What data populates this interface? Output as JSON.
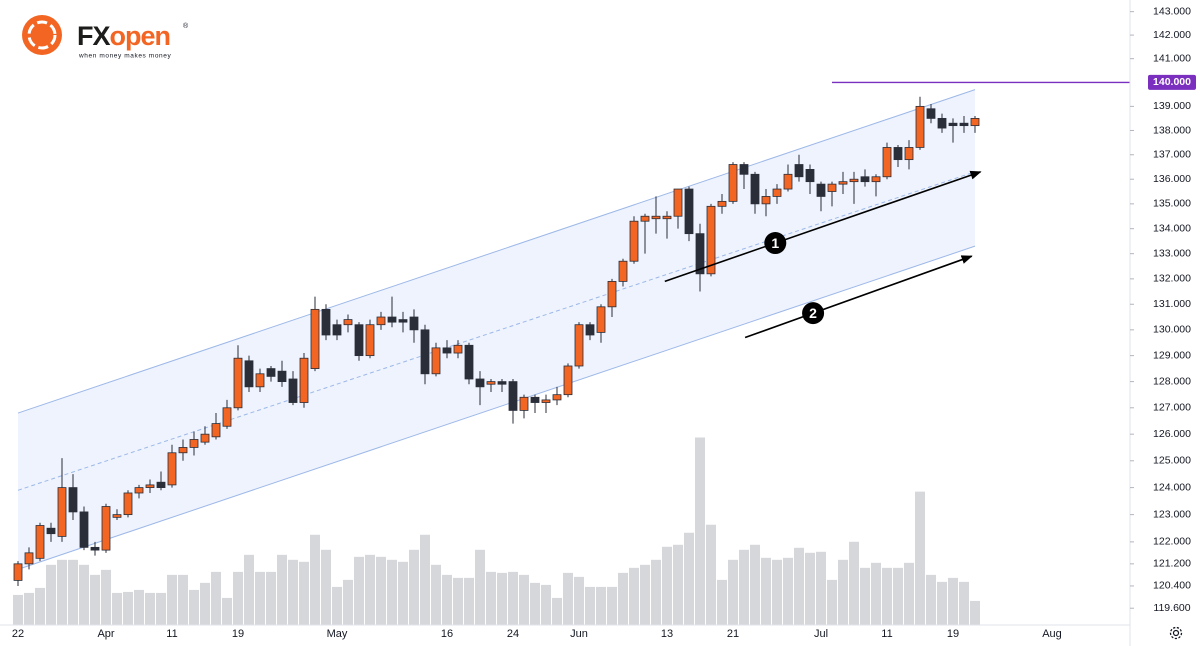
{
  "logo": {
    "brand": [
      "FX",
      "open"
    ],
    "registered": "®",
    "tagline": "when money makes money"
  },
  "chart_data": {
    "type": "candlestick",
    "categories": [
      "22",
      null,
      null,
      null,
      null,
      null,
      null,
      null,
      "Apr",
      null,
      null,
      null,
      null,
      null,
      "11",
      null,
      null,
      null,
      null,
      null,
      "19",
      null,
      null,
      null,
      null,
      null,
      null,
      null,
      null,
      "May",
      null,
      null,
      null,
      null,
      null,
      null,
      null,
      null,
      null,
      "16",
      null,
      null,
      null,
      null,
      null,
      "24",
      null,
      null,
      null,
      null,
      null,
      "Jun",
      null,
      null,
      null,
      null,
      null,
      null,
      null,
      "13",
      null,
      null,
      null,
      null,
      null,
      "21",
      null,
      null,
      null,
      null,
      null,
      null,
      null,
      "Jul",
      null,
      null,
      null,
      null,
      null,
      "11",
      null,
      null,
      null,
      null,
      null,
      "19",
      null,
      null,
      null,
      null,
      null,
      null,
      null,
      null,
      "Aug"
    ],
    "open": [
      120.6,
      121.2,
      121.4,
      122.5,
      122.2,
      124.0,
      123.1,
      121.8,
      121.7,
      122.9,
      123.0,
      123.8,
      124.0,
      124.2,
      124.1,
      125.3,
      125.5,
      125.7,
      125.9,
      126.3,
      127.0,
      128.8,
      127.8,
      128.5,
      128.4,
      128.1,
      127.2,
      128.5,
      130.8,
      130.2,
      130.2,
      130.2,
      129.0,
      130.2,
      130.5,
      130.4,
      130.5,
      130.0,
      128.3,
      129.3,
      129.1,
      129.4,
      128.1,
      127.9,
      128.0,
      128.0,
      126.9,
      127.4,
      127.2,
      127.3,
      127.5,
      128.6,
      130.2,
      129.9,
      130.9,
      131.9,
      132.7,
      134.3,
      134.4,
      134.4,
      134.5,
      135.6,
      133.8,
      132.2,
      134.9,
      135.1,
      136.6,
      136.2,
      135.0,
      135.3,
      135.6,
      136.6,
      136.4,
      135.8,
      135.5,
      135.8,
      135.9,
      136.1,
      135.9,
      136.1,
      137.3,
      136.8,
      137.3,
      138.9,
      138.5,
      138.3,
      138.3,
      138.2,
      null,
      null,
      null,
      null,
      null,
      null,
      null
    ],
    "high": [
      121.3,
      121.8,
      122.7,
      122.7,
      125.1,
      124.5,
      123.3,
      122.0,
      123.4,
      123.2,
      123.9,
      124.1,
      124.3,
      124.6,
      125.6,
      125.8,
      126.1,
      126.3,
      126.8,
      127.3,
      129.4,
      129.0,
      128.5,
      128.6,
      128.8,
      128.4,
      129.1,
      131.3,
      131.0,
      130.4,
      130.6,
      130.3,
      130.4,
      130.7,
      131.3,
      130.7,
      130.8,
      130.2,
      129.5,
      129.6,
      129.6,
      129.5,
      128.4,
      128.1,
      128.1,
      128.1,
      127.5,
      127.5,
      127.5,
      127.8,
      128.7,
      130.3,
      130.3,
      131.0,
      132.0,
      132.8,
      134.5,
      134.6,
      135.3,
      134.7,
      135.6,
      135.7,
      134.2,
      135.0,
      135.4,
      136.7,
      136.7,
      136.3,
      135.6,
      135.8,
      136.6,
      137.0,
      136.6,
      135.9,
      135.9,
      136.3,
      136.3,
      136.4,
      136.2,
      137.5,
      137.4,
      137.6,
      139.4,
      139.1,
      138.7,
      138.5,
      138.6,
      138.6,
      null,
      null,
      null,
      null,
      null,
      null,
      null
    ],
    "low": [
      120.4,
      121.0,
      121.3,
      122.0,
      122.0,
      122.8,
      121.7,
      121.5,
      121.6,
      122.8,
      122.9,
      123.6,
      123.8,
      123.9,
      124.0,
      125.0,
      125.2,
      125.6,
      125.8,
      126.2,
      126.9,
      127.6,
      127.6,
      128.0,
      127.8,
      127.1,
      127.0,
      128.4,
      129.6,
      129.6,
      129.9,
      128.8,
      128.9,
      130.0,
      130.1,
      129.9,
      129.5,
      127.9,
      128.2,
      128.9,
      128.9,
      127.9,
      127.1,
      127.6,
      127.6,
      126.4,
      126.6,
      126.8,
      126.8,
      127.1,
      127.4,
      128.5,
      129.6,
      129.5,
      130.5,
      131.7,
      132.6,
      133.0,
      133.8,
      133.6,
      134.0,
      133.5,
      131.5,
      132.1,
      134.6,
      135.0,
      135.6,
      134.6,
      134.5,
      135.0,
      135.5,
      135.9,
      135.4,
      134.7,
      134.9,
      135.4,
      135.0,
      135.7,
      135.3,
      136.0,
      136.5,
      136.4,
      137.2,
      138.3,
      137.9,
      137.5,
      137.9,
      137.9,
      null,
      null,
      null,
      null,
      null,
      null,
      null
    ],
    "close": [
      121.2,
      121.6,
      122.6,
      122.3,
      124.0,
      123.1,
      121.8,
      121.7,
      123.3,
      123.0,
      123.8,
      124.0,
      124.1,
      124.0,
      125.3,
      125.5,
      125.8,
      126.0,
      126.4,
      127.0,
      128.9,
      127.8,
      128.3,
      128.2,
      128.0,
      127.2,
      128.9,
      130.8,
      129.8,
      129.8,
      130.4,
      129.0,
      130.2,
      130.5,
      130.3,
      130.3,
      130.0,
      128.3,
      129.3,
      129.1,
      129.4,
      128.1,
      127.8,
      128.0,
      127.9,
      126.9,
      127.4,
      127.2,
      127.3,
      127.5,
      128.6,
      130.2,
      129.8,
      130.9,
      131.9,
      132.7,
      134.3,
      134.5,
      134.5,
      134.5,
      135.6,
      133.8,
      132.2,
      134.9,
      135.1,
      136.6,
      136.2,
      135.0,
      135.3,
      135.6,
      136.2,
      136.1,
      135.9,
      135.3,
      135.8,
      135.9,
      136.0,
      135.9,
      136.1,
      137.3,
      136.8,
      137.3,
      139.0,
      138.5,
      138.1,
      138.2,
      138.2,
      138.5,
      null,
      null,
      null,
      null,
      null,
      null,
      null
    ],
    "volume": [
      30,
      32,
      37,
      60,
      65,
      65,
      60,
      50,
      55,
      32,
      33,
      35,
      32,
      32,
      50,
      50,
      35,
      42,
      53,
      27,
      53,
      70,
      53,
      53,
      70,
      65,
      63,
      90,
      75,
      38,
      45,
      68,
      70,
      68,
      65,
      63,
      75,
      90,
      60,
      50,
      47,
      47,
      75,
      53,
      52,
      53,
      50,
      42,
      40,
      27,
      52,
      48,
      38,
      38,
      38,
      52,
      57,
      60,
      65,
      78,
      80,
      92,
      187,
      100,
      45,
      65,
      75,
      80,
      67,
      65,
      67,
      77,
      72,
      73,
      45,
      65,
      83,
      57,
      62,
      57,
      57,
      62,
      133,
      50,
      43,
      47,
      43,
      24,
      null,
      null,
      null,
      null,
      null,
      null,
      null
    ],
    "up_color": "#f26522",
    "down_color": "#2a2e39",
    "volume_color": "#d6d7db",
    "log_scale": true,
    "ylim": [
      119.0,
      143.5
    ],
    "yticks": [
      {
        "value": 143,
        "label": "143.000"
      },
      {
        "value": 142,
        "label": "142.000"
      },
      {
        "value": 141,
        "label": "141.000"
      },
      {
        "value": 139,
        "label": "139.000"
      },
      {
        "value": 138,
        "label": "138.000"
      },
      {
        "value": 137,
        "label": "137.000"
      },
      {
        "value": 136,
        "label": "136.000"
      },
      {
        "value": 135,
        "label": "135.000"
      },
      {
        "value": 134,
        "label": "134.000"
      },
      {
        "value": 133,
        "label": "133.000"
      },
      {
        "value": 132,
        "label": "132.000"
      },
      {
        "value": 131,
        "label": "131.000"
      },
      {
        "value": 130,
        "label": "130.000"
      },
      {
        "value": 129,
        "label": "129.000"
      },
      {
        "value": 128,
        "label": "128.000"
      },
      {
        "value": 127,
        "label": "127.000"
      },
      {
        "value": 126,
        "label": "126.000"
      },
      {
        "value": 125,
        "label": "125.000"
      },
      {
        "value": 124,
        "label": "124.000"
      },
      {
        "value": 123,
        "label": "123.000"
      },
      {
        "value": 122,
        "label": "122.000"
      },
      {
        "value": 121.2,
        "label": "121.200"
      },
      {
        "value": 120.4,
        "label": "120.400"
      },
      {
        "value": 119.6,
        "label": "119.600"
      }
    ],
    "channel": {
      "x": [
        0,
        87
      ],
      "upper": [
        126.8,
        139.7
      ],
      "middle": [
        123.9,
        136.3
      ],
      "lower": [
        121.0,
        133.3
      ],
      "color": "#9db8e8",
      "fill": "#eef3fd"
    },
    "level": {
      "value": 140,
      "label": "140.000",
      "from": 74,
      "color": "#7b2fbe"
    },
    "arrows": [
      {
        "label": "1",
        "x": [
          58.8,
          87.5
        ],
        "y": [
          131.9,
          136.3
        ]
      },
      {
        "label": "2",
        "x": [
          66.1,
          86.7
        ],
        "y": [
          129.7,
          132.9
        ]
      }
    ]
  }
}
